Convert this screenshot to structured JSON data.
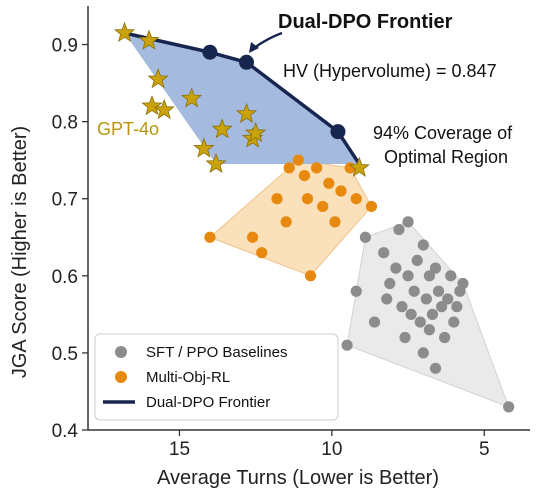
{
  "chart_data": {
    "type": "scatter",
    "xlabel": "Average Turns (Lower is Better)",
    "ylabel": "JGA Score (Higher is Better)",
    "xlim": [
      18,
      3.5
    ],
    "ylim": [
      0.4,
      0.95
    ],
    "x_reversed": true,
    "x_ticks": [
      15,
      10,
      5
    ],
    "y_ticks": [
      0.4,
      0.5,
      0.6,
      0.7,
      0.8,
      0.9
    ],
    "grid": false,
    "legend_position": "bottom-left",
    "series": [
      {
        "name": "SFT / PPO Baselines",
        "marker": "circle",
        "color": "#8c8c8c",
        "hull_color": "#e6e6e6",
        "points": [
          [
            9.5,
            0.51
          ],
          [
            9.2,
            0.58
          ],
          [
            8.9,
            0.65
          ],
          [
            8.6,
            0.54
          ],
          [
            8.3,
            0.63
          ],
          [
            8.1,
            0.59
          ],
          [
            7.9,
            0.61
          ],
          [
            7.8,
            0.66
          ],
          [
            7.7,
            0.56
          ],
          [
            7.6,
            0.52
          ],
          [
            7.5,
            0.6
          ],
          [
            7.4,
            0.55
          ],
          [
            7.3,
            0.58
          ],
          [
            7.2,
            0.62
          ],
          [
            7.1,
            0.54
          ],
          [
            7.0,
            0.64
          ],
          [
            7.0,
            0.5
          ],
          [
            6.9,
            0.57
          ],
          [
            6.8,
            0.6
          ],
          [
            6.8,
            0.53
          ],
          [
            6.7,
            0.55
          ],
          [
            6.6,
            0.61
          ],
          [
            6.5,
            0.58
          ],
          [
            6.4,
            0.56
          ],
          [
            6.3,
            0.52
          ],
          [
            6.2,
            0.57
          ],
          [
            6.1,
            0.6
          ],
          [
            6.0,
            0.54
          ],
          [
            5.9,
            0.56
          ],
          [
            5.8,
            0.58
          ],
          [
            5.7,
            0.59
          ],
          [
            4.2,
            0.43
          ],
          [
            7.5,
            0.67
          ],
          [
            6.6,
            0.48
          ],
          [
            8.2,
            0.57
          ]
        ]
      },
      {
        "name": "Multi-Obj-RL",
        "marker": "circle",
        "color": "#e8890f",
        "hull_color": "#f9ddb4",
        "points": [
          [
            14.0,
            0.65
          ],
          [
            12.6,
            0.65
          ],
          [
            12.3,
            0.63
          ],
          [
            11.8,
            0.7
          ],
          [
            11.4,
            0.74
          ],
          [
            11.1,
            0.75
          ],
          [
            10.8,
            0.7
          ],
          [
            10.7,
            0.6
          ],
          [
            10.5,
            0.74
          ],
          [
            10.3,
            0.69
          ],
          [
            10.1,
            0.72
          ],
          [
            9.9,
            0.67
          ],
          [
            9.7,
            0.71
          ],
          [
            9.4,
            0.74
          ],
          [
            9.2,
            0.7
          ],
          [
            8.7,
            0.69
          ],
          [
            11.5,
            0.67
          ],
          [
            10.9,
            0.73
          ]
        ]
      },
      {
        "name": "GPT-4o",
        "marker": "star",
        "color": "#c9a20e",
        "hull_color": "#9fb6dc",
        "points": [
          [
            16.8,
            0.915
          ],
          [
            16.0,
            0.905
          ],
          [
            15.7,
            0.855
          ],
          [
            15.9,
            0.82
          ],
          [
            15.5,
            0.815
          ],
          [
            14.6,
            0.83
          ],
          [
            14.2,
            0.765
          ],
          [
            13.8,
            0.745
          ],
          [
            13.6,
            0.79
          ],
          [
            12.8,
            0.81
          ],
          [
            12.6,
            0.778
          ],
          [
            12.5,
            0.785
          ],
          [
            9.1,
            0.74
          ]
        ]
      },
      {
        "name": "Dual-DPO Frontier",
        "marker": "line",
        "color": "#17264f",
        "points": [
          [
            16.8,
            0.915
          ],
          [
            14.0,
            0.89
          ],
          [
            12.8,
            0.877
          ],
          [
            9.8,
            0.787
          ],
          [
            9.1,
            0.745
          ]
        ]
      }
    ],
    "annotations": {
      "frontier_title": "Dual-DPO Frontier",
      "hv": "HV (Hypervolume) = 0.847",
      "coverage_line1": "94% Coverage of",
      "coverage_line2": "Optimal Region",
      "gpt_label": "GPT-4o"
    },
    "legend": [
      {
        "label": "SFT / PPO Baselines",
        "marker": "circle",
        "color": "#8c8c8c"
      },
      {
        "label": "Multi-Obj-RL",
        "marker": "circle",
        "color": "#e8890f"
      },
      {
        "label": "Dual-DPO Frontier",
        "marker": "line",
        "color": "#17264f"
      }
    ]
  }
}
